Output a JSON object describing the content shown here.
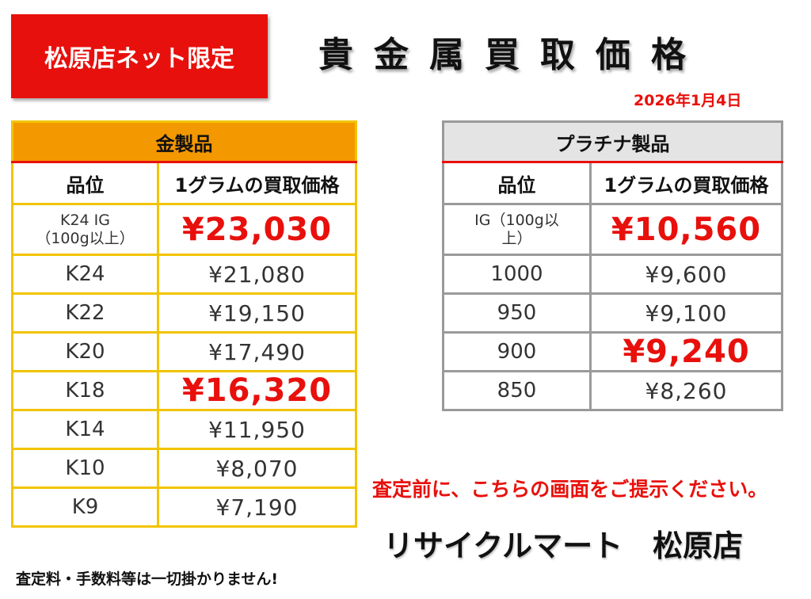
{
  "badge": "松原店ネット限定",
  "title": "貴金属買取価格",
  "date": "2026年1月4日",
  "gold": {
    "header": "金製品",
    "col_grade": "品位",
    "col_price": "1グラムの買取価格",
    "rows": [
      {
        "grade": "K24 IG\n（100g以上）",
        "price": "¥23,030"
      },
      {
        "grade": "K24",
        "price": "¥21,080"
      },
      {
        "grade": "K22",
        "price": "¥19,150"
      },
      {
        "grade": "K20",
        "price": "¥17,490"
      },
      {
        "grade": "K18",
        "price": "¥16,320"
      },
      {
        "grade": "K14",
        "price": "¥11,950"
      },
      {
        "grade": "K10",
        "price": "¥8,070"
      },
      {
        "grade": "K9",
        "price": "¥7,190"
      }
    ]
  },
  "platinum": {
    "header": "プラチナ製品",
    "col_grade": "品位",
    "col_price": "1グラムの買取価格",
    "rows": [
      {
        "grade": "IG（100g以\n上）",
        "price": "¥10,560"
      },
      {
        "grade": "1000",
        "price": "¥9,600"
      },
      {
        "grade": "950",
        "price": "¥9,100"
      },
      {
        "grade": "900",
        "price": "¥9,240"
      },
      {
        "grade": "850",
        "price": "¥8,260"
      }
    ]
  },
  "notice": "査定前に、こちらの画面をご提示ください。",
  "store_name": "リサイクルマート　松原店",
  "footnote": "査定料・手数料等は一切掛かりません!",
  "colors": {
    "accent_red": "#e8100c",
    "gold_header": "#f49800",
    "gold_border": "#f2c400",
    "platinum_header": "#e4e4e4",
    "platinum_border": "#9a9a9a"
  }
}
